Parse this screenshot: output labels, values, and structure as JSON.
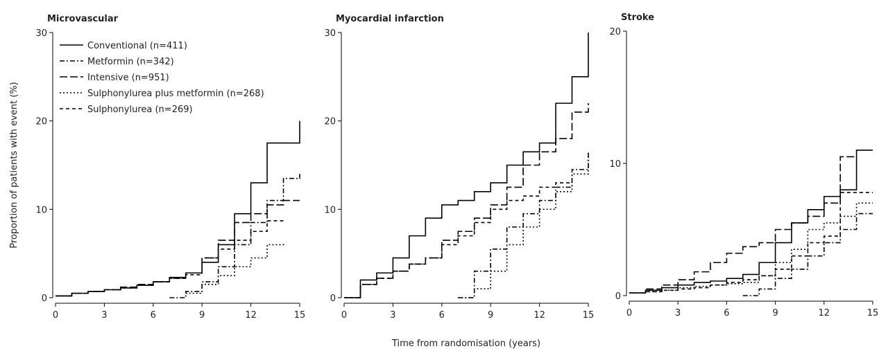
{
  "chart_data": [
    {
      "type": "line",
      "steps": "post",
      "title": "Microvascular",
      "ylabel": "Proportion of patients with event (%)",
      "legend": "upper left",
      "x": [
        0,
        1,
        2,
        3,
        4,
        5,
        6,
        7,
        8,
        9,
        10,
        11,
        12,
        13,
        14,
        15
      ],
      "xlim": [
        0,
        15
      ],
      "xticks": [
        0,
        3,
        6,
        9,
        12,
        15
      ],
      "ylim": [
        0,
        30
      ],
      "yticks": [
        0,
        10,
        20,
        30
      ],
      "series": [
        {
          "name": "Conventional (n=411)",
          "color": "#000000",
          "dash": "solid",
          "values": [
            0.2,
            0.5,
            0.7,
            0.9,
            1.1,
            1.4,
            1.8,
            2.3,
            2.8,
            4,
            6,
            9.5,
            13,
            17.5,
            17.5,
            20
          ]
        },
        {
          "name": "Metformin (n=342)",
          "color": "#000000",
          "dash": "dot-dash",
          "values": [
            null,
            null,
            null,
            null,
            null,
            null,
            null,
            0,
            0.7,
            1.8,
            3.5,
            6,
            8.5,
            11,
            13.5,
            14
          ]
        },
        {
          "name": "Intensive (n=951)",
          "color": "#000000",
          "dash": "long-dash",
          "values": [
            0.2,
            0.5,
            0.7,
            0.9,
            1.2,
            1.5,
            1.8,
            2.2,
            2.8,
            4.5,
            6.5,
            8.5,
            9.5,
            10.5,
            11,
            11
          ]
        },
        {
          "name": "Sulphonylurea plus metformin (n=268)",
          "color": "#000000",
          "dash": "dot",
          "values": [
            null,
            null,
            null,
            null,
            null,
            null,
            null,
            null,
            0.5,
            1.5,
            2.5,
            3.5,
            4.5,
            6,
            6.3,
            null
          ]
        },
        {
          "name": "Sulphonylurea (n=269)",
          "color": "#000000",
          "dash": "dash",
          "values": [
            0.2,
            0.5,
            0.7,
            0.9,
            1.1,
            1.4,
            1.8,
            2.2,
            2.6,
            4.5,
            5.5,
            6.5,
            7.5,
            8.7,
            8.7,
            null
          ]
        }
      ]
    },
    {
      "type": "line",
      "steps": "post",
      "title": "Myocardial infarction",
      "xlabel": "Time from randomisation (years)",
      "x": [
        0,
        1,
        2,
        3,
        4,
        5,
        6,
        7,
        8,
        9,
        10,
        11,
        12,
        13,
        14,
        15
      ],
      "xlim": [
        0,
        15
      ],
      "xticks": [
        0,
        3,
        6,
        9,
        12,
        15
      ],
      "ylim": [
        0,
        30
      ],
      "yticks": [
        0,
        10,
        20,
        30
      ],
      "series": [
        {
          "color": "#000000",
          "dash": "solid",
          "values": [
            0,
            2,
            2.8,
            4.5,
            7,
            9,
            10.5,
            11,
            12,
            13,
            15,
            16.5,
            17.5,
            22,
            25,
            30
          ]
        },
        {
          "color": "#000000",
          "dash": "dot-dash",
          "values": [
            null,
            null,
            null,
            null,
            null,
            null,
            null,
            0,
            3,
            5.5,
            8,
            9.5,
            11,
            12.5,
            14.5,
            16.5
          ]
        },
        {
          "color": "#000000",
          "dash": "long-dash",
          "values": [
            0,
            1.5,
            2.2,
            3,
            3.8,
            4.5,
            6.5,
            7.5,
            9,
            10.5,
            12.5,
            15,
            16.5,
            18,
            21,
            22
          ]
        },
        {
          "color": "#000000",
          "dash": "dot",
          "values": [
            null,
            null,
            null,
            null,
            null,
            null,
            null,
            0,
            1,
            3,
            6,
            8,
            10,
            12,
            14,
            16.5
          ]
        },
        {
          "color": "#000000",
          "dash": "dash",
          "values": [
            0,
            1.5,
            2.2,
            3,
            3.8,
            4.5,
            6,
            7,
            8.5,
            10,
            11,
            11.5,
            12.5,
            13,
            13,
            null
          ]
        }
      ]
    },
    {
      "type": "line",
      "steps": "post",
      "title": "Stroke",
      "x": [
        0,
        1,
        2,
        3,
        4,
        5,
        6,
        7,
        8,
        9,
        10,
        11,
        12,
        13,
        14,
        15
      ],
      "xlim": [
        0,
        15
      ],
      "xticks": [
        0,
        3,
        6,
        9,
        12,
        15
      ],
      "ylim": [
        0,
        20
      ],
      "yticks": [
        0,
        10,
        20
      ],
      "series": [
        {
          "color": "#000000",
          "dash": "solid",
          "values": [
            0.2,
            0.4,
            0.6,
            0.8,
            1,
            1.1,
            1.3,
            1.6,
            2.5,
            4,
            5.5,
            6.5,
            7.5,
            8,
            11,
            11
          ]
        },
        {
          "color": "#000000",
          "dash": "dot-dash",
          "values": [
            null,
            null,
            null,
            null,
            null,
            null,
            null,
            0,
            0.5,
            1.3,
            2,
            3,
            4,
            5,
            6.2,
            6.2
          ]
        },
        {
          "color": "#000000",
          "dash": "long-dash",
          "values": [
            0.2,
            0.5,
            0.8,
            1.2,
            1.8,
            2.5,
            3.2,
            3.7,
            4,
            5,
            5.5,
            6,
            7,
            10.5,
            10.5,
            null
          ]
        },
        {
          "color": "#000000",
          "dash": "dot",
          "values": [
            0.2,
            0.3,
            0.4,
            0.6,
            0.7,
            0.8,
            0.9,
            1,
            1.5,
            2.5,
            3.5,
            5,
            5.5,
            6,
            7,
            7
          ]
        },
        {
          "color": "#000000",
          "dash": "dash",
          "values": [
            0.2,
            0.3,
            0.4,
            0.5,
            0.6,
            0.8,
            1,
            1.2,
            1.5,
            2,
            3,
            4,
            4.5,
            7.8,
            7.8,
            7.8
          ]
        }
      ]
    }
  ]
}
